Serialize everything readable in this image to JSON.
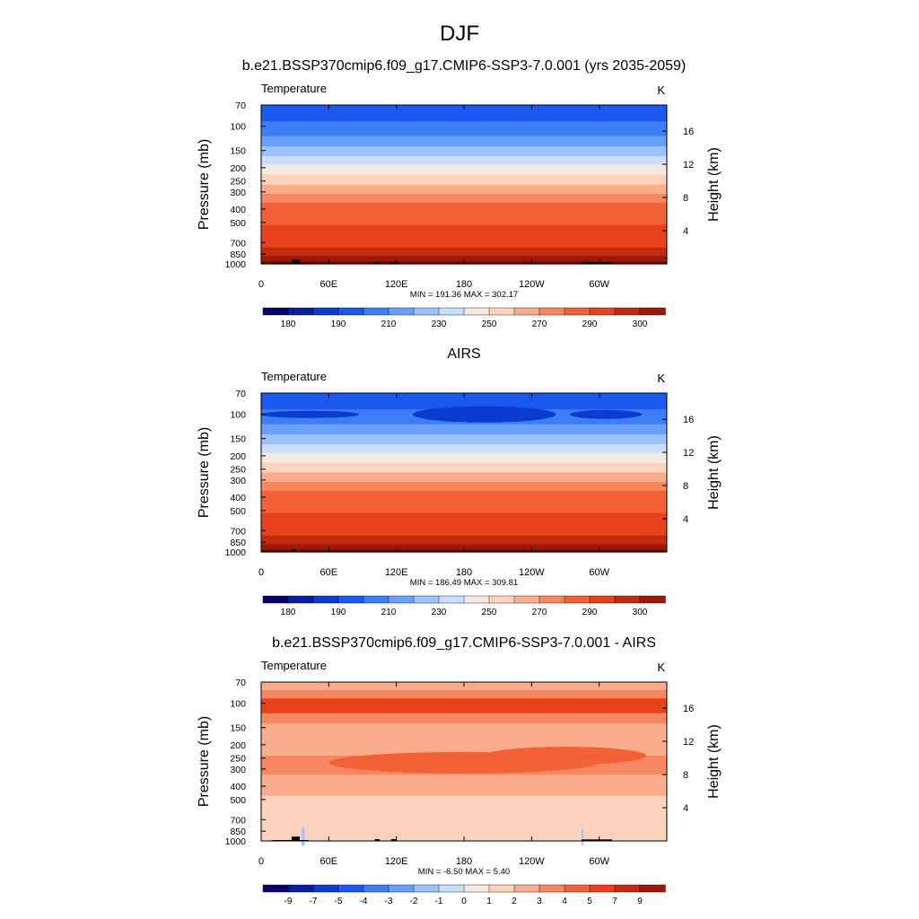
{
  "figure": {
    "season": "DJF"
  },
  "colors": {
    "temperature_levels": [
      "#08006b",
      "#0a1fa0",
      "#0c3bd0",
      "#1a58f0",
      "#3c7ef5",
      "#6aa0f8",
      "#9cc2fb",
      "#c9defc",
      "#f3e9e0",
      "#fcd2bd",
      "#f9ad8d",
      "#f68760",
      "#f26236",
      "#e8421a",
      "#c42a0f",
      "#9c1808",
      "#6e0c04"
    ],
    "difference_levels": [
      "#08006b",
      "#0a1fa0",
      "#0c3bd0",
      "#1a58f0",
      "#3c7ef5",
      "#6aa0f8",
      "#9cc2fb",
      "#c9defc",
      "#f3e9e0",
      "#fcd2bd",
      "#f9ad8d",
      "#f68760",
      "#f26236",
      "#e8421a",
      "#c42a0f",
      "#9c1808",
      "#6e0c04"
    ],
    "terrain": "#000000"
  },
  "chart_data": [
    {
      "type": "heatmap",
      "title": "b.e21.BSSP370cmip6.f09_g17.CMIP6-SSP3-7.0.001 (yrs 2035-2059)",
      "left_label": "Temperature",
      "units": "K",
      "ylabel": "Pressure (mb)",
      "ylabel_right": "Height (km)",
      "x_ticks": [
        "0",
        "60E",
        "120E",
        "180",
        "120W",
        "60W"
      ],
      "y_ticks": [
        "70",
        "100",
        "150",
        "200",
        "250",
        "300",
        "400",
        "500",
        "700",
        "850",
        "1000"
      ],
      "y_ticks_right": [
        "4",
        "8",
        "12",
        "16"
      ],
      "stats": "MIN = 191.36  MAX = 302.17",
      "colorbar_labels": [
        "180",
        "190",
        "210",
        "230",
        "250",
        "270",
        "290",
        "300"
      ]
    },
    {
      "type": "heatmap",
      "title": "AIRS",
      "left_label": "Temperature",
      "units": "K",
      "ylabel": "Pressure (mb)",
      "ylabel_right": "Height (km)",
      "x_ticks": [
        "0",
        "60E",
        "120E",
        "180",
        "120W",
        "60W"
      ],
      "y_ticks": [
        "70",
        "100",
        "150",
        "200",
        "250",
        "300",
        "400",
        "500",
        "700",
        "850",
        "1000"
      ],
      "y_ticks_right": [
        "4",
        "8",
        "12",
        "16"
      ],
      "stats": "MIN = 186.49  MAX = 309.81",
      "colorbar_labels": [
        "180",
        "190",
        "210",
        "230",
        "250",
        "270",
        "290",
        "300"
      ]
    },
    {
      "type": "heatmap",
      "title": "b.e21.BSSP370cmip6.f09_g17.CMIP6-SSP3-7.0.001 - AIRS",
      "left_label": "Temperature",
      "units": "K",
      "ylabel": "Pressure (mb)",
      "ylabel_right": "Height (km)",
      "x_ticks": [
        "0",
        "60E",
        "120E",
        "180",
        "120W",
        "60W"
      ],
      "y_ticks": [
        "70",
        "100",
        "150",
        "200",
        "250",
        "300",
        "400",
        "500",
        "700",
        "850",
        "1000"
      ],
      "y_ticks_right": [
        "4",
        "8",
        "12",
        "16"
      ],
      "stats": "MIN =  -6.50  MAX =   5.40",
      "colorbar_labels": [
        "-9",
        "-7",
        "-5",
        "-4",
        "-3",
        "-2",
        "-1",
        "0",
        "1",
        "2",
        "3",
        "4",
        "5",
        "7",
        "9"
      ]
    }
  ]
}
